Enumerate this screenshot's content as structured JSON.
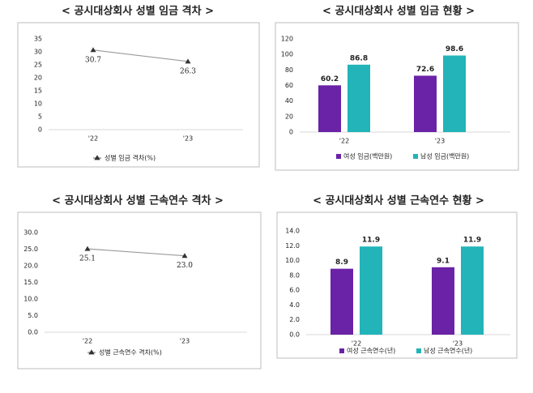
{
  "chart_data": [
    {
      "type": "line",
      "title": "< 공시대상회사 성별 임금 격차 >",
      "categories": [
        "'22",
        "'23"
      ],
      "series": [
        {
          "name": "성별 임금 격차(%)",
          "color": "#9a9a9a",
          "values": [
            30.7,
            26.3
          ]
        }
      ],
      "ylim": [
        0,
        35
      ],
      "yticks": [
        0,
        5,
        10,
        15,
        20,
        25,
        30,
        35
      ],
      "grid": false,
      "legend": "bottom"
    },
    {
      "type": "bar",
      "title": "< 공시대상회사 성별 임금 현황 >",
      "categories": [
        "'22",
        "'23"
      ],
      "series": [
        {
          "name": "여성 임금(백만원)",
          "color": "#6a22a6",
          "values": [
            60.2,
            72.6
          ]
        },
        {
          "name": "남성 임금(백만원)",
          "color": "#22b4b8",
          "values": [
            86.8,
            98.6
          ]
        }
      ],
      "ylim": [
        0,
        120
      ],
      "yticks": [
        0,
        20,
        40,
        60,
        80,
        100,
        120
      ],
      "grid": false,
      "legend": "bottom"
    },
    {
      "type": "line",
      "title": "< 공시대상회사 성별 근속연수 격차 >",
      "categories": [
        "'22",
        "'23"
      ],
      "series": [
        {
          "name": "성별 근속연수 격차(%)",
          "color": "#9a9a9a",
          "values": [
            25.1,
            23.0
          ],
          "value_labels": [
            "25.1",
            "23.0"
          ]
        }
      ],
      "ylim": [
        0,
        30
      ],
      "yticks": [
        {
          "value": 0,
          "label": "0.0"
        },
        {
          "value": 5,
          "label": "5.0"
        },
        {
          "value": 10,
          "label": "10.0"
        },
        {
          "value": 15,
          "label": "15.0"
        },
        {
          "value": 20,
          "label": "20.0"
        },
        {
          "value": 25,
          "label": "25.0"
        },
        {
          "value": 30,
          "label": "30.0"
        }
      ],
      "grid": false,
      "legend": "bottom"
    },
    {
      "type": "bar",
      "title": "< 공시대상회사 성별 근속연수 현황 >",
      "categories": [
        "'22",
        "'23"
      ],
      "series": [
        {
          "name": "여성 근속연수(년)",
          "color": "#6a22a6",
          "values": [
            8.9,
            9.1
          ]
        },
        {
          "name": "남성 근속연수(년)",
          "color": "#22b4b8",
          "values": [
            11.9,
            11.9
          ]
        }
      ],
      "ylim": [
        0,
        14
      ],
      "yticks": [
        {
          "value": 0,
          "label": "0.0"
        },
        {
          "value": 2,
          "label": "2.0"
        },
        {
          "value": 4,
          "label": "4.0"
        },
        {
          "value": 6,
          "label": "6.0"
        },
        {
          "value": 8,
          "label": "8.0"
        },
        {
          "value": 10,
          "label": "10.0"
        },
        {
          "value": 12,
          "label": "12.0"
        },
        {
          "value": 14,
          "label": "14.0"
        }
      ],
      "grid": false,
      "legend": "bottom"
    }
  ]
}
